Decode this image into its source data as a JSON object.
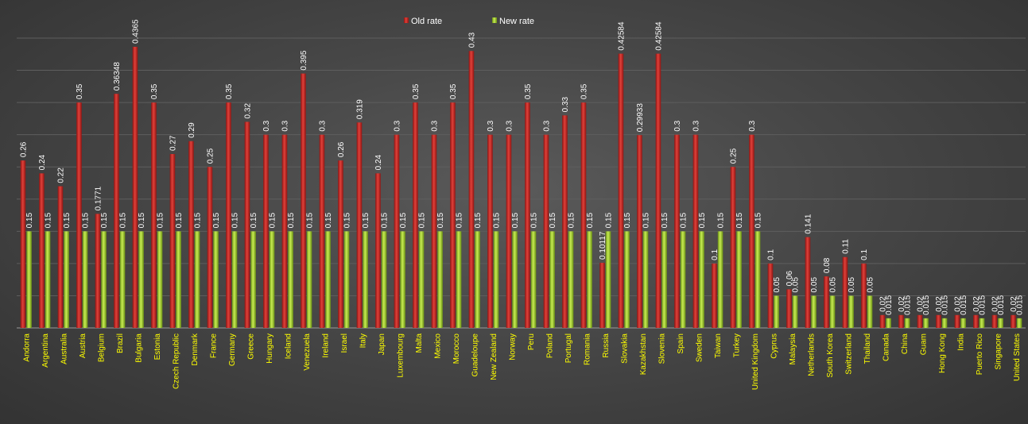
{
  "chart_data": {
    "type": "bar",
    "categories": [
      "Andorra",
      "Argentina",
      "Australia",
      "Austria",
      "Belgium",
      "Brazil",
      "Bulgaria",
      "Estonia",
      "Czech Republic",
      "Denmark",
      "France",
      "Germany",
      "Greece",
      "Hungary",
      "Iceland",
      "Venezuela",
      "Ireland",
      "Israel",
      "Italy",
      "Japan",
      "Luxembourg",
      "Malta",
      "Mexico",
      "Morocco",
      "Guadeloupe",
      "New Zealand",
      "Norway",
      "Peru",
      "Poland",
      "Portugal",
      "Romania",
      "Russia",
      "Slovakia",
      "Kazakhstan",
      "Slovenia",
      "Spain",
      "Sweden",
      "Taiwan",
      "Turkey",
      "United Kingdom",
      "Cyprus",
      "Malaysia",
      "Netherlands",
      "South Korea",
      "Switzerland",
      "Thailand",
      "Canada",
      "China",
      "Guam",
      "Hong Kong",
      "India",
      "Puerto Rico",
      "Singapore",
      "United States"
    ],
    "series": [
      {
        "name": "Old rate",
        "color": "#c8221d",
        "labels": [
          "0.26",
          "0.24",
          "0.22",
          "0.35",
          "0.1771",
          "0.36348",
          "0.4365",
          "0.35",
          "0.27",
          "0.29",
          "0.25",
          "0.35",
          "0.32",
          "0.3",
          "0.3",
          "0.395",
          "0.3",
          "0.26",
          "0.319",
          "0.24",
          "0.3",
          "0.35",
          "0.3",
          "0.35",
          "0.43",
          "0.3",
          "0.3",
          "0.35",
          "0.3",
          "0.33",
          "0.35",
          "0.10117",
          "0.42584",
          "0.29933",
          "0.42584",
          "0.3",
          "0.3",
          "0.1",
          "0.25",
          "0.3",
          "0.1",
          "0.06",
          "0.141",
          "0.08",
          "0.11",
          "0.1",
          "0.02",
          "0.02",
          "0.02",
          "0.02",
          "0.02",
          "0.02",
          "0.02",
          "0.02"
        ]
      },
      {
        "name": "New rate",
        "color": "#98c22a",
        "labels": [
          "0.15",
          "0.15",
          "0.15",
          "0.15",
          "0.15",
          "0.15",
          "0.15",
          "0.15",
          "0.15",
          "0.15",
          "0.15",
          "0.15",
          "0.15",
          "0.15",
          "0.15",
          "0.15",
          "0.15",
          "0.15",
          "0.15",
          "0.15",
          "0.15",
          "0.15",
          "0.15",
          "0.15",
          "0.15",
          "0.15",
          "0.15",
          "0.15",
          "0.15",
          "0.15",
          "0.15",
          "0.15",
          "0.15",
          "0.15",
          "0.15",
          "0.15",
          "0.15",
          "0.15",
          "0.15",
          "0.15",
          "0.05",
          "0.05",
          "0.05",
          "0.05",
          "0.05",
          "0.05",
          "0.015",
          "0.015",
          "0.015",
          "0.015",
          "0.015",
          "0.015",
          "0.015",
          "0.015"
        ]
      }
    ],
    "ylim": [
      0,
      0.45
    ],
    "grid": true,
    "legend_position": "top"
  }
}
